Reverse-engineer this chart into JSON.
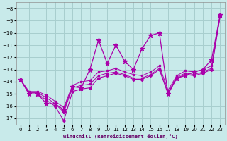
{
  "xlabel": "Windchill (Refroidissement éolien,°C)",
  "background_color": "#c8eaea",
  "grid_color": "#a8cece",
  "line_color": "#aa00aa",
  "xlim": [
    -0.5,
    23.5
  ],
  "ylim": [
    -17.5,
    -7.5
  ],
  "xticks": [
    0,
    1,
    2,
    3,
    4,
    5,
    6,
    7,
    8,
    9,
    10,
    11,
    12,
    13,
    14,
    15,
    16,
    17,
    18,
    19,
    20,
    21,
    22,
    23
  ],
  "yticks": [
    -8,
    -9,
    -10,
    -11,
    -12,
    -13,
    -14,
    -15,
    -16,
    -17
  ],
  "series": [
    {
      "y": [
        -13.8,
        -15.0,
        -15.0,
        -15.8,
        -15.8,
        -16.3,
        -14.4,
        -14.5,
        -13.0,
        -10.6,
        -12.5,
        -11.0,
        -12.3,
        -13.0,
        -11.3,
        -10.2,
        -10.0,
        -15.0,
        -13.7,
        -13.5,
        -13.2,
        -13.0,
        -12.2,
        -8.5
      ],
      "marker": "*",
      "markersize": 4.5,
      "lw": 0.9
    },
    {
      "y": [
        -13.8,
        -15.0,
        -15.0,
        -15.5,
        -16.0,
        -17.2,
        -14.8,
        -14.6,
        -14.5,
        -13.7,
        -13.5,
        -13.3,
        -13.5,
        -13.8,
        -13.8,
        -13.5,
        -13.0,
        -15.0,
        -13.7,
        -13.4,
        -13.5,
        -13.3,
        -13.0,
        -8.6
      ],
      "marker": "D",
      "markersize": 2,
      "lw": 0.8
    },
    {
      "y": [
        -13.8,
        -14.9,
        -14.9,
        -15.3,
        -15.8,
        -16.5,
        -14.5,
        -14.3,
        -14.2,
        -13.5,
        -13.3,
        -13.2,
        -13.4,
        -13.7,
        -13.7,
        -13.4,
        -12.9,
        -14.9,
        -13.6,
        -13.3,
        -13.4,
        -13.2,
        -12.9,
        -8.55
      ],
      "marker": "s",
      "markersize": 1.8,
      "lw": 0.7
    },
    {
      "y": [
        -13.8,
        -14.8,
        -14.8,
        -15.1,
        -15.6,
        -16.1,
        -14.3,
        -14.0,
        -13.9,
        -13.2,
        -13.1,
        -12.9,
        -13.2,
        -13.4,
        -13.5,
        -13.2,
        -12.7,
        -14.7,
        -13.5,
        -13.1,
        -13.2,
        -13.0,
        -12.7,
        -8.5
      ],
      "marker": "s",
      "markersize": 1.8,
      "lw": 0.7
    }
  ]
}
